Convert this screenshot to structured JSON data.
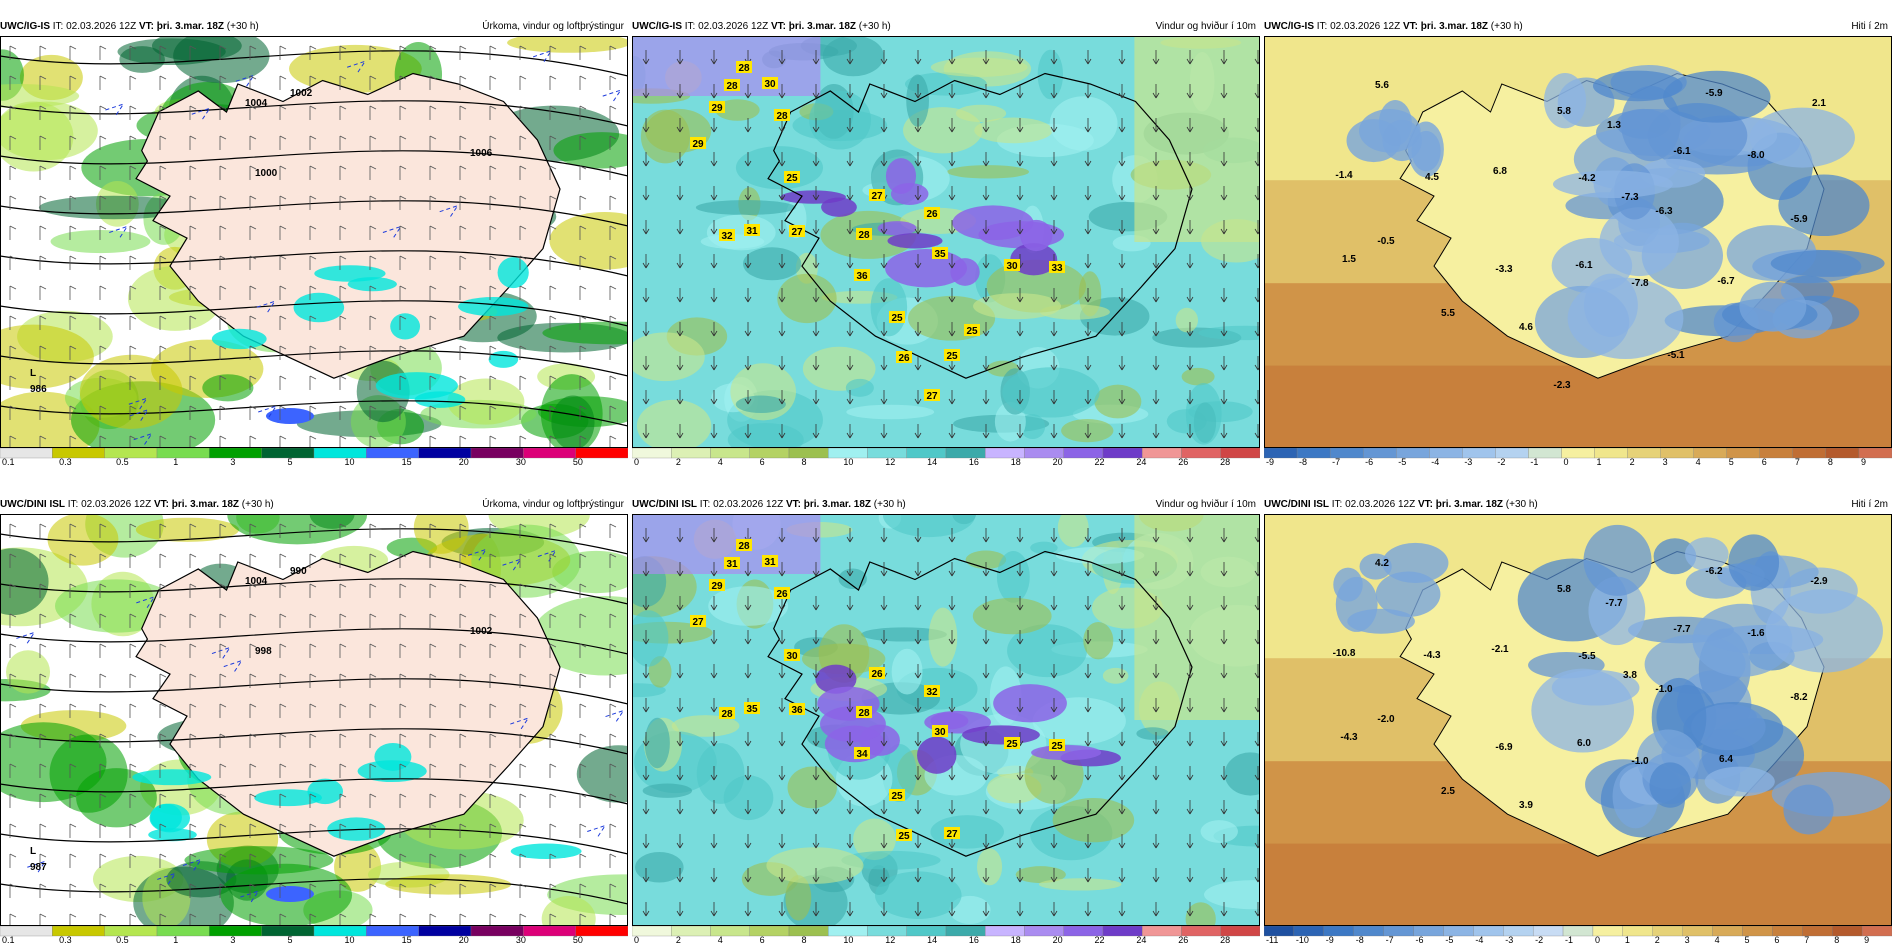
{
  "rows": [
    {
      "model": "UWC/IG-IS",
      "panels": [
        {
          "kind": "precip",
          "model": "UWC/IG-IS",
          "it_label": "IT:",
          "it_value": "02.03.2026 12Z",
          "vt_label": "VT:",
          "vt_value": "þri. 3.mar. 18Z",
          "lead": "(+30 h)",
          "title": "Úrkoma, vindur og loftþrýstingur",
          "scale": {
            "colors": [
              "#e6e6e6",
              "#c8c800",
              "#b4e650",
              "#78dc50",
              "#00a000",
              "#006432",
              "#00e6dc",
              "#3c64ff",
              "#0000a0",
              "#780060",
              "#dc0078",
              "#ff0000"
            ],
            "ticks": [
              "0.1",
              "0.3",
              "0.5",
              "1",
              "3",
              "5",
              "10",
              "15",
              "20",
              "30",
              "50"
            ]
          },
          "labels": [
            {
              "text": "L",
              "kind": "low"
            },
            {
              "text": "986",
              "kind": "low"
            },
            {
              "text": "1004",
              "kind": "iso"
            },
            {
              "text": "1006",
              "kind": "iso"
            },
            {
              "text": "1000",
              "kind": "iso"
            },
            {
              "text": "1002",
              "kind": "iso"
            }
          ]
        },
        {
          "kind": "wind",
          "model": "UWC/IG-IS",
          "it_label": "IT:",
          "it_value": "02.03.2026 12Z",
          "vt_label": "VT:",
          "vt_value": "þri. 3.mar. 18Z",
          "lead": "(+30 h)",
          "title": "Vindur og hviður í 10m",
          "scale": {
            "colors": [
              "#f0f8dc",
              "#dcf0b4",
              "#c8e68c",
              "#b4d264",
              "#9cc050",
              "#a0f0f0",
              "#78dcdc",
              "#50c8c8",
              "#3caaaa",
              "#c8b4ff",
              "#aa8cf0",
              "#8c64e6",
              "#6e3cc8",
              "#f09696",
              "#e06464",
              "#d04646"
            ],
            "ticks": [
              "0",
              "2",
              "4",
              "6",
              "8",
              "10",
              "12",
              "14",
              "16",
              "18",
              "20",
              "22",
              "24",
              "26",
              "28"
            ]
          },
          "gusts": [
            "29",
            "28",
            "30",
            "28",
            "28",
            "29",
            "27",
            "26",
            "25",
            "32",
            "31",
            "27",
            "28",
            "35",
            "36",
            "30",
            "33",
            "25",
            "26",
            "25",
            "27",
            "25"
          ]
        },
        {
          "kind": "temp",
          "model": "UWC/IG-IS",
          "it_label": "IT:",
          "it_value": "02.03.2026 12Z",
          "vt_label": "VT:",
          "vt_value": "þri. 3.mar. 18Z",
          "lead": "(+30 h)",
          "title": "Hiti í 2m",
          "scale": {
            "colors": [
              "#2c64b4",
              "#3c78c4",
              "#5088cc",
              "#6496d4",
              "#78a5dc",
              "#8cb4e4",
              "#a0c4ec",
              "#b4d2f0",
              "#d2e6d2",
              "#f6f0a0",
              "#f0e68c",
              "#e6d278",
              "#e0c068",
              "#d8aa58",
              "#d09448",
              "#c8803c",
              "#c06e34",
              "#b45a2c",
              "#d26e50"
            ],
            "ticks": [
              "-9",
              "-8",
              "-7",
              "-6",
              "-5",
              "-4",
              "-3",
              "-2",
              "-1",
              "0",
              "1",
              "2",
              "3",
              "4",
              "5",
              "6",
              "7",
              "8",
              "9"
            ]
          },
          "values": [
            "5.6",
            "-5.9",
            "2.1",
            "5.8",
            "1.3",
            "-6.1",
            "-8.0",
            "-1.4",
            "4.5",
            "6.8",
            "-4.2",
            "-7.3",
            "-6.3",
            "-5.9",
            "-0.5",
            "1.5",
            "-3.3",
            "-6.1",
            "-7.8",
            "-6.7",
            "5.5",
            "4.6",
            "-5.1",
            "-2.3"
          ]
        }
      ]
    },
    {
      "model": "UWC/DINI ISL",
      "panels": [
        {
          "kind": "precip",
          "model": "UWC/DINI ISL",
          "it_label": "IT:",
          "it_value": "02.03.2026 12Z",
          "vt_label": "VT:",
          "vt_value": "þri. 3.mar. 18Z",
          "lead": "(+30 h)",
          "title": "Úrkoma, vindur og loftþrýstingur",
          "scale": {
            "colors": [
              "#e6e6e6",
              "#c8c800",
              "#b4e650",
              "#78dc50",
              "#00a000",
              "#006432",
              "#00e6dc",
              "#3c64ff",
              "#0000a0",
              "#780060",
              "#dc0078",
              "#ff0000"
            ],
            "ticks": [
              "0.1",
              "0.3",
              "0.5",
              "1",
              "3",
              "5",
              "10",
              "15",
              "20",
              "30",
              "50"
            ]
          },
          "labels": [
            {
              "text": "L",
              "kind": "low"
            },
            {
              "text": "987",
              "kind": "low"
            },
            {
              "text": "1004",
              "kind": "iso"
            },
            {
              "text": "1002",
              "kind": "iso"
            },
            {
              "text": "998",
              "kind": "iso"
            },
            {
              "text": "990",
              "kind": "iso"
            }
          ]
        },
        {
          "kind": "wind",
          "model": "UWC/DINI ISL",
          "it_label": "IT:",
          "it_value": "02.03.2026 12Z",
          "vt_label": "VT:",
          "vt_value": "þri. 3.mar. 18Z",
          "lead": "(+30 h)",
          "title": "Vindur og hviður í 10m",
          "scale": {
            "colors": [
              "#f0f8dc",
              "#dcf0b4",
              "#c8e68c",
              "#b4d264",
              "#9cc050",
              "#a0f0f0",
              "#78dcdc",
              "#50c8c8",
              "#3caaaa",
              "#c8b4ff",
              "#aa8cf0",
              "#8c64e6",
              "#6e3cc8",
              "#f09696",
              "#e06464",
              "#d04646"
            ],
            "ticks": [
              "0",
              "2",
              "4",
              "6",
              "8",
              "10",
              "12",
              "14",
              "16",
              "18",
              "20",
              "22",
              "24",
              "26",
              "28"
            ]
          },
          "gusts": [
            "29",
            "31",
            "31",
            "28",
            "26",
            "27",
            "26",
            "32",
            "30",
            "28",
            "35",
            "36",
            "28",
            "30",
            "34",
            "25",
            "25",
            "25",
            "25",
            "27"
          ]
        },
        {
          "kind": "temp",
          "model": "UWC/DINI ISL",
          "it_label": "IT:",
          "it_value": "02.03.2026 12Z",
          "vt_label": "VT:",
          "vt_value": "þri. 3.mar. 18Z",
          "lead": "(+30 h)",
          "title": "Hiti í 2m",
          "scale": {
            "colors": [
              "#1e50a0",
              "#2c64b4",
              "#3c78c4",
              "#5088cc",
              "#6496d4",
              "#78a5dc",
              "#8cb4e4",
              "#a0c4ec",
              "#b4d2f0",
              "#c8dcf4",
              "#d2e6d2",
              "#f6f0a0",
              "#f0e68c",
              "#e6d278",
              "#e0c068",
              "#d8aa58",
              "#d09448",
              "#c8803c",
              "#c06e34",
              "#b45a2c",
              "#d26e50"
            ],
            "ticks": [
              "-11",
              "-10",
              "-9",
              "-8",
              "-7",
              "-6",
              "-5",
              "-4",
              "-3",
              "-2",
              "-1",
              "0",
              "1",
              "2",
              "3",
              "4",
              "5",
              "6",
              "7",
              "8",
              "9"
            ]
          },
          "values": [
            "4.2",
            "-6.2",
            "-2.9",
            "5.8",
            "-7.7",
            "-7.7",
            "-1.6",
            "-10.8",
            "-4.3",
            "-2.1",
            "-5.5",
            "3.8",
            "-1.0",
            "-8.2",
            "-2.0",
            "-4.3",
            "-6.9",
            "6.0",
            "-1.0",
            "6.4",
            "2.5",
            "3.9"
          ]
        }
      ]
    }
  ]
}
